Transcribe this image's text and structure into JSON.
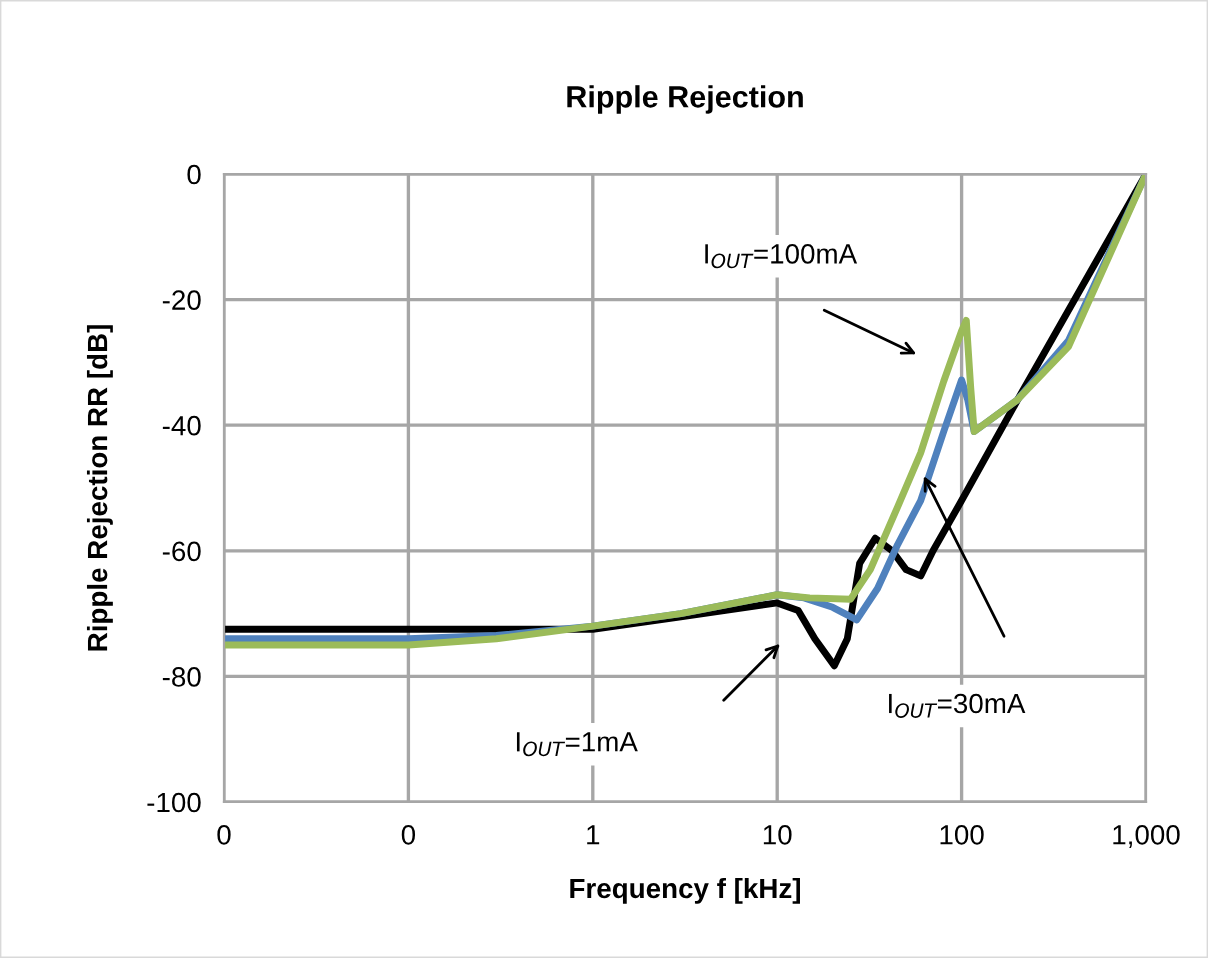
{
  "chart_data": {
    "type": "line",
    "title": "Ripple Rejection",
    "xlabel": "Frequency f [kHz]",
    "ylabel": "Ripple Rejection RR [dB]",
    "log": "x",
    "xlim": [
      0.01,
      1000
    ],
    "ylim": [
      -100,
      0
    ],
    "xticks": [
      {
        "value": 0.01,
        "label": "0"
      },
      {
        "value": 0.1,
        "label": "0"
      },
      1,
      10,
      100,
      {
        "value": 1000,
        "label": "1,000"
      }
    ],
    "yticks": [
      -100,
      -80,
      -60,
      -40,
      -20,
      0
    ],
    "grid": true,
    "marker": "none",
    "line_style": "solid",
    "series": [
      {
        "color": "#000000",
        "x": [
          0.01,
          0.1,
          0.3,
          1,
          3,
          10,
          13,
          16,
          20.4,
          24,
          28,
          34,
          42,
          50,
          60,
          70,
          100,
          210,
          1000
        ],
        "values": [
          -72.5,
          -72.5,
          -72.5,
          -72.5,
          -70.5,
          -68.3,
          -69.5,
          -74,
          -78.3,
          -74,
          -62,
          -58,
          -60,
          -63,
          -64,
          -60,
          -52,
          -35,
          0
        ]
      },
      {
        "color": "#4f81bd",
        "x": [
          0.01,
          0.1,
          0.3,
          1,
          3,
          10,
          14,
          20,
          27,
          35,
          45,
          60,
          80,
          100,
          108,
          117,
          200,
          380,
          1000
        ],
        "values": [
          -74,
          -74,
          -73.5,
          -72,
          -70,
          -67,
          -67.5,
          -69,
          -71,
          -66,
          -59,
          -52,
          -41,
          -32.8,
          -36,
          -41,
          -36,
          -26.5,
          0
        ]
      },
      {
        "color": "#9bbb59",
        "x": [
          0.01,
          0.1,
          0.3,
          1,
          3,
          10,
          15,
          25,
          32,
          45,
          60,
          80,
          100,
          106,
          112,
          117,
          200,
          380,
          1000
        ],
        "values": [
          -75,
          -75,
          -74,
          -72,
          -70,
          -67,
          -67.5,
          -67.7,
          -63,
          -53,
          -44.4,
          -33,
          -25,
          -23.3,
          -34,
          -41,
          -36,
          -27.5,
          0
        ]
      }
    ],
    "annotations": [
      "I$_{OUT}$=100mA",
      "I$_{OUT}$=1mA",
      "I$_{OUT}$=30mA"
    ]
  }
}
